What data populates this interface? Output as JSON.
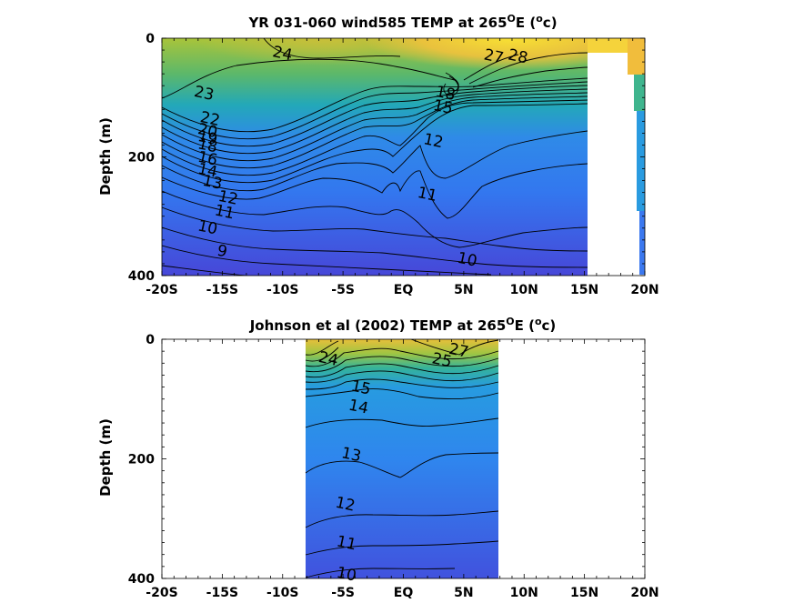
{
  "chart_data": [
    {
      "type": "contour",
      "title": "YR 031-060 wind585 TEMP at 265",
      "title_sup": "O",
      "title_tail1": "E (",
      "title_sup2": "o",
      "title_tail2": "c)",
      "ylabel": "Depth (m)",
      "xlim": [
        -20,
        20
      ],
      "ylim": [
        0,
        400
      ],
      "xticks": [
        -20,
        -15,
        -10,
        -5,
        0,
        5,
        10,
        15,
        20
      ],
      "xtick_labels": [
        "-20S",
        "-15S",
        "-10S",
        "-5S",
        "EQ",
        "5N",
        "10N",
        "15N",
        "20N"
      ],
      "yticks": [
        0,
        200,
        400
      ],
      "ytick_labels": [
        "0",
        "200",
        "400"
      ],
      "data_extent": [
        -20,
        15.2
      ],
      "contour_labels": [
        {
          "text": "24",
          "lat": -10,
          "depth": 25
        },
        {
          "text": "28",
          "lat": 9.5,
          "depth": 30
        },
        {
          "text": "27",
          "lat": 7.5,
          "depth": 30
        },
        {
          "text": "23",
          "lat": -16.5,
          "depth": 92
        },
        {
          "text": "22",
          "lat": -16,
          "depth": 135
        },
        {
          "text": "20",
          "lat": -16.2,
          "depth": 155
        },
        {
          "text": "19",
          "lat": -16.2,
          "depth": 167
        },
        {
          "text": "18",
          "lat": -16.2,
          "depth": 180
        },
        {
          "text": "16",
          "lat": -16.2,
          "depth": 202
        },
        {
          "text": "14",
          "lat": -16.2,
          "depth": 222
        },
        {
          "text": "13",
          "lat": -15.8,
          "depth": 242
        },
        {
          "text": "12",
          "lat": -14.5,
          "depth": 268
        },
        {
          "text": "11",
          "lat": -14.8,
          "depth": 292
        },
        {
          "text": "10",
          "lat": -16.2,
          "depth": 318
        },
        {
          "text": "9",
          "lat": -15,
          "depth": 358
        },
        {
          "text": "12",
          "lat": 2.5,
          "depth": 172
        },
        {
          "text": "11",
          "lat": 2.0,
          "depth": 262
        },
        {
          "text": "10",
          "lat": 5.3,
          "depth": 372
        },
        {
          "text": "15",
          "lat": 3.3,
          "depth": 115
        },
        {
          "text": "18",
          "lat": 3.5,
          "depth": 92
        }
      ]
    },
    {
      "type": "contour",
      "title": "Johnson et al (2002) TEMP at 265",
      "title_sup": "O",
      "title_tail1": "E (",
      "title_sup2": "o",
      "title_tail2": "c)",
      "ylabel": "Depth (m)",
      "xlim": [
        -20,
        20
      ],
      "ylim": [
        0,
        400
      ],
      "xticks": [
        -20,
        -15,
        -10,
        -5,
        0,
        5,
        10,
        15,
        20
      ],
      "xtick_labels": [
        "-20S",
        "-15S",
        "-10S",
        "-5S",
        "EQ",
        "5N",
        "10N",
        "15N",
        "20N"
      ],
      "yticks": [
        0,
        200,
        400
      ],
      "ytick_labels": [
        "0",
        "200",
        "400"
      ],
      "data_extent": [
        -8,
        8
      ],
      "contour_labels": [
        {
          "text": "24",
          "lat": -6.2,
          "depth": 32
        },
        {
          "text": "27",
          "lat": 4.6,
          "depth": 18
        },
        {
          "text": "25",
          "lat": 3.2,
          "depth": 34
        },
        {
          "text": "15",
          "lat": -3.5,
          "depth": 80
        },
        {
          "text": "14",
          "lat": -3.7,
          "depth": 112
        },
        {
          "text": "13",
          "lat": -4.3,
          "depth": 192
        },
        {
          "text": "12",
          "lat": -4.8,
          "depth": 275
        },
        {
          "text": "11",
          "lat": -4.7,
          "depth": 340
        },
        {
          "text": "10",
          "lat": -4.7,
          "depth": 392
        }
      ]
    }
  ]
}
